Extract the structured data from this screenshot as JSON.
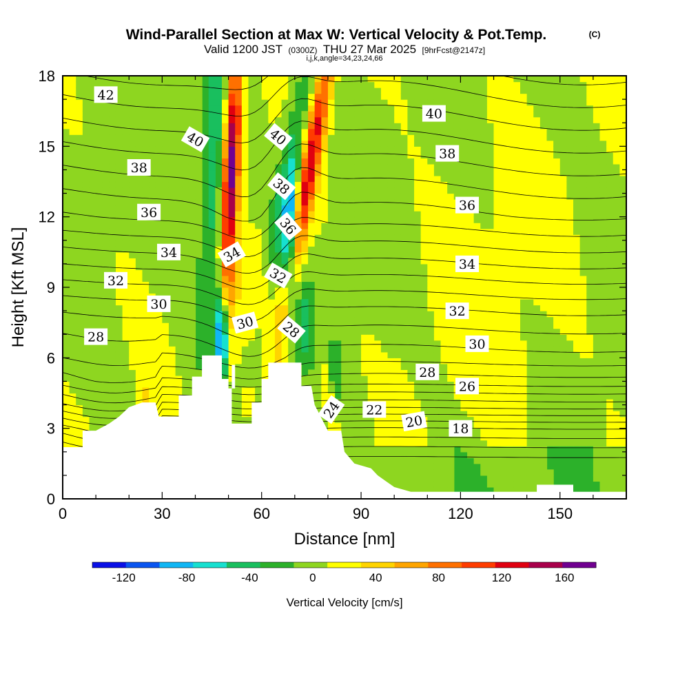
{
  "chart_data": {
    "type": "heatmap",
    "title": "Wind-Parallel Section at Max W: Vertical Velocity & Pot.Temp.",
    "title_mark": "(C)",
    "subtitle_parts": [
      "Valid 1200 JST",
      "(0300Z)",
      "THU 27 Mar 2025",
      "[9hrFcst@2147z]"
    ],
    "subtitle2": "i,j,k,angle=34,23,24,66",
    "xlabel": "Distance [nm]",
    "ylabel": "Height [Kft MSL]",
    "xlim": [
      0,
      170
    ],
    "ylim": [
      0,
      18
    ],
    "x_ticks": [
      "0",
      "30",
      "60",
      "90",
      "120",
      "150"
    ],
    "y_ticks": [
      "0",
      "3",
      "6",
      "9",
      "12",
      "15",
      "18"
    ],
    "x_tick_values": [
      0,
      30,
      60,
      90,
      120,
      150
    ],
    "y_tick_values": [
      0,
      3,
      6,
      9,
      12,
      15,
      18
    ],
    "colorbar": {
      "label": "Vertical Velocity [cm/s]",
      "bounds": [
        -140,
        180
      ],
      "ticks": [
        "-120",
        "-80",
        "-40",
        "0",
        "40",
        "80",
        "120",
        "160"
      ],
      "tick_values": [
        -120,
        -80,
        -40,
        0,
        40,
        80,
        120,
        160
      ],
      "colors": [
        "#0a10e6",
        "#0a55f0",
        "#10b6f5",
        "#16e0d0",
        "#19bf5e",
        "#2cb12a",
        "#8ed620",
        "#ffff00",
        "#ffd400",
        "#ffa500",
        "#ff7000",
        "#ff3c00",
        "#e00010",
        "#a8004a",
        "#700090"
      ]
    },
    "terrain": [
      [
        0,
        2.2
      ],
      [
        6,
        2.2
      ],
      [
        6,
        2.9
      ],
      [
        10,
        2.9
      ],
      [
        14,
        3.2
      ],
      [
        17,
        3.5
      ],
      [
        20,
        3.9
      ],
      [
        24,
        4.1
      ],
      [
        28,
        4.1
      ],
      [
        29,
        3.5
      ],
      [
        35,
        3.5
      ],
      [
        35,
        4.4
      ],
      [
        39,
        4.4
      ],
      [
        39,
        5.2
      ],
      [
        42,
        5.2
      ],
      [
        42,
        6.1
      ],
      [
        48,
        6.1
      ],
      [
        48,
        5.1
      ],
      [
        50,
        5.1
      ],
      [
        50,
        4.7
      ],
      [
        52,
        4.7
      ],
      [
        52,
        5.7
      ],
      [
        51,
        5.7
      ],
      [
        51,
        3.2
      ],
      [
        57,
        3.2
      ],
      [
        57,
        4.1
      ],
      [
        60,
        4.1
      ],
      [
        60,
        5.1
      ],
      [
        62,
        5.1
      ],
      [
        62,
        5.8
      ],
      [
        72,
        5.8
      ],
      [
        72,
        4.8
      ],
      [
        75,
        4.8
      ],
      [
        76,
        4.0
      ],
      [
        80,
        2.9
      ],
      [
        84,
        2.9
      ],
      [
        85,
        2.0
      ],
      [
        88,
        1.5
      ],
      [
        93,
        1.3
      ],
      [
        95,
        1.0
      ],
      [
        97,
        0.8
      ],
      [
        100,
        0.5
      ],
      [
        105,
        0.3
      ],
      [
        143,
        0.3
      ],
      [
        143,
        0.6
      ],
      [
        154,
        0.6
      ],
      [
        154,
        0.3
      ],
      [
        170,
        0.3
      ]
    ],
    "isentropes": [
      16,
      17,
      18,
      19,
      20,
      21,
      22,
      23,
      24,
      25,
      26,
      27,
      28,
      29,
      30,
      31,
      32,
      33,
      34,
      35,
      36,
      37,
      38,
      39,
      40,
      41,
      42,
      43
    ],
    "contour_labels": [
      {
        "text": "42",
        "x": 13,
        "y": 17.2,
        "angle": 0
      },
      {
        "text": "40",
        "x": 40,
        "y": 15.3,
        "angle": 30
      },
      {
        "text": "40",
        "x": 65,
        "y": 15.4,
        "angle": 40
      },
      {
        "text": "40",
        "x": 112,
        "y": 16.4,
        "angle": 0
      },
      {
        "text": "38",
        "x": 23,
        "y": 14.1,
        "angle": 0
      },
      {
        "text": "38",
        "x": 66,
        "y": 13.3,
        "angle": 40
      },
      {
        "text": "38",
        "x": 116,
        "y": 14.7,
        "angle": 0
      },
      {
        "text": "36",
        "x": 26,
        "y": 12.2,
        "angle": 0
      },
      {
        "text": "36",
        "x": 68,
        "y": 11.6,
        "angle": 50
      },
      {
        "text": "36",
        "x": 122,
        "y": 12.5,
        "angle": 0
      },
      {
        "text": "34",
        "x": 32,
        "y": 10.5,
        "angle": 0
      },
      {
        "text": "34",
        "x": 51,
        "y": 10.4,
        "angle": -30
      },
      {
        "text": "34",
        "x": 122,
        "y": 10.0,
        "angle": 0
      },
      {
        "text": "32",
        "x": 16,
        "y": 9.3,
        "angle": 0
      },
      {
        "text": "32",
        "x": 65,
        "y": 9.5,
        "angle": 30
      },
      {
        "text": "32",
        "x": 119,
        "y": 8.0,
        "angle": 0
      },
      {
        "text": "30",
        "x": 29,
        "y": 8.3,
        "angle": 0
      },
      {
        "text": "30",
        "x": 55,
        "y": 7.5,
        "angle": -15
      },
      {
        "text": "30",
        "x": 125,
        "y": 6.6,
        "angle": 0
      },
      {
        "text": "28",
        "x": 10,
        "y": 6.9,
        "angle": 0
      },
      {
        "text": "28",
        "x": 69,
        "y": 7.2,
        "angle": 40
      },
      {
        "text": "28",
        "x": 110,
        "y": 5.4,
        "angle": 0
      },
      {
        "text": "26",
        "x": 122,
        "y": 4.8,
        "angle": 0
      },
      {
        "text": "24",
        "x": 81,
        "y": 3.8,
        "angle": -55
      },
      {
        "text": "22",
        "x": 94,
        "y": 3.8,
        "angle": 0
      },
      {
        "text": "20",
        "x": 106,
        "y": 3.3,
        "angle": -10
      },
      {
        "text": "18",
        "x": 120,
        "y": 3.0,
        "angle": 0
      }
    ]
  }
}
